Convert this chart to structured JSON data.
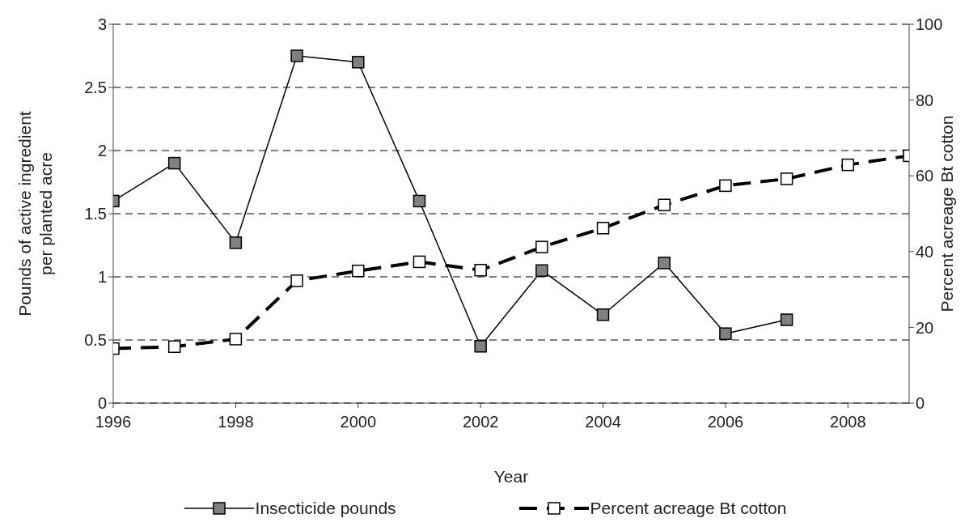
{
  "chart_data": {
    "type": "line",
    "xlabel": "Year",
    "ylabel": "Pounds of active ingredient per planted acre",
    "y2label": "Percent acreage Bt cotton",
    "x": [
      1996,
      1997,
      1998,
      1999,
      2000,
      2001,
      2002,
      2003,
      2004,
      2005,
      2006,
      2007,
      2008,
      2009
    ],
    "series": [
      {
        "name": "Insecticide pounds",
        "color": "#808080",
        "line_style": "solid",
        "values": [
          1.6,
          1.9,
          1.27,
          2.75,
          2.7,
          1.6,
          0.45,
          1.05,
          0.7,
          1.11,
          0.55,
          0.66,
          null,
          null
        ]
      },
      {
        "name": "Percent acreage Bt cotton",
        "color": "#000000",
        "line_style": "dashed",
        "axis": "y2",
        "values": [
          14.4,
          14.9,
          16.9,
          32.3,
          34.9,
          37.3,
          35.1,
          41.2,
          46.2,
          52.3,
          57.4,
          59.2,
          62.9,
          65.3
        ]
      }
    ],
    "xlim": [
      1996,
      2009
    ],
    "xticks": [
      1996,
      1998,
      2000,
      2002,
      2004,
      2006,
      2008
    ],
    "ylim": [
      0,
      3
    ],
    "yticks": [
      0,
      0.5,
      1,
      1.5,
      2,
      2.5,
      3
    ],
    "y2lim": [
      0,
      100
    ],
    "y2ticks": [
      0,
      20,
      40,
      60,
      80,
      100
    ],
    "grid": "y",
    "legend": "bottom",
    "marker": "square"
  }
}
